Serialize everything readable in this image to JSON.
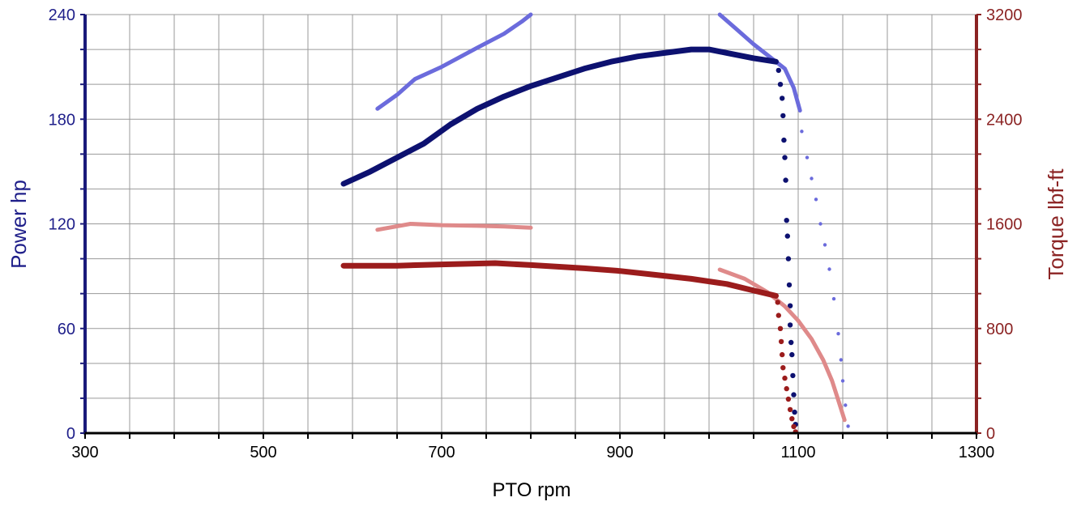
{
  "chart_data": {
    "type": "line",
    "title": "",
    "xlabel": "PTO rpm",
    "ylabel": "Power hp",
    "y2label": "Torque lbf-ft",
    "xlim": [
      300,
      1300
    ],
    "ylim": [
      0,
      240
    ],
    "y2lim": [
      0,
      3200
    ],
    "x_ticks": [
      300,
      500,
      700,
      900,
      1100,
      1300
    ],
    "y_ticks": [
      0,
      60,
      120,
      180,
      240
    ],
    "y2_ticks": [
      0,
      800,
      1600,
      2400,
      3200
    ],
    "grid": true,
    "legend": "none",
    "colors": {
      "left_axis": "#1a1a7a",
      "right_axis": "#8b2323",
      "power_dark": "#0d1170",
      "power_light": "#6b6bdc",
      "torque_dark": "#9b1c1c",
      "torque_light": "#df8a8a"
    },
    "series": [
      {
        "axis": "left",
        "color": "power_light",
        "style": "line",
        "points": [
          [
            628,
            186
          ],
          [
            650,
            194
          ],
          [
            670,
            203
          ],
          [
            700,
            210
          ],
          [
            740,
            221
          ],
          [
            770,
            229
          ],
          [
            790,
            236
          ],
          [
            800,
            240
          ]
        ]
      },
      {
        "axis": "left",
        "color": "power_light",
        "style": "line",
        "points": [
          [
            1012,
            240
          ],
          [
            1030,
            232
          ],
          [
            1050,
            223
          ],
          [
            1070,
            215
          ],
          [
            1085,
            209
          ],
          [
            1095,
            198
          ],
          [
            1102,
            185
          ]
        ]
      },
      {
        "axis": "left",
        "color": "power_light",
        "style": "dots",
        "points": [
          [
            1104,
            173
          ],
          [
            1110,
            158
          ],
          [
            1115,
            146
          ],
          [
            1120,
            134
          ],
          [
            1125,
            120
          ],
          [
            1130,
            108
          ],
          [
            1135,
            94
          ],
          [
            1140,
            77
          ],
          [
            1145,
            57
          ],
          [
            1148,
            42
          ],
          [
            1150,
            30
          ],
          [
            1153,
            16
          ],
          [
            1156,
            4
          ]
        ]
      },
      {
        "axis": "left",
        "color": "power_dark",
        "style": "line",
        "points": [
          [
            590,
            143
          ],
          [
            620,
            150
          ],
          [
            650,
            158
          ],
          [
            680,
            166
          ],
          [
            710,
            177
          ],
          [
            740,
            186
          ],
          [
            770,
            193
          ],
          [
            800,
            199
          ],
          [
            830,
            204
          ],
          [
            860,
            209
          ],
          [
            890,
            213
          ],
          [
            920,
            216
          ],
          [
            950,
            218
          ],
          [
            980,
            220
          ],
          [
            1000,
            220
          ],
          [
            1020,
            218
          ],
          [
            1050,
            215
          ],
          [
            1075,
            213
          ]
        ]
      },
      {
        "axis": "left",
        "color": "power_dark",
        "style": "dots",
        "points": [
          [
            1078,
            208
          ],
          [
            1080,
            200
          ],
          [
            1082,
            192
          ],
          [
            1083,
            182
          ],
          [
            1084,
            168
          ],
          [
            1085,
            158
          ],
          [
            1086,
            145
          ],
          [
            1087,
            122
          ],
          [
            1088,
            113
          ],
          [
            1089,
            100
          ],
          [
            1090,
            85
          ],
          [
            1091,
            73
          ],
          [
            1091,
            62
          ],
          [
            1092,
            52
          ],
          [
            1093,
            45
          ],
          [
            1094,
            33
          ],
          [
            1095,
            22
          ],
          [
            1096,
            12
          ],
          [
            1097,
            5
          ]
        ]
      },
      {
        "axis": "right",
        "color": "torque_light",
        "style": "line",
        "points": [
          [
            628,
            1555
          ],
          [
            665,
            1600
          ],
          [
            700,
            1590
          ],
          [
            740,
            1585
          ],
          [
            770,
            1580
          ],
          [
            800,
            1570
          ]
        ]
      },
      {
        "axis": "right",
        "color": "torque_light",
        "style": "line",
        "points": [
          [
            1012,
            1250
          ],
          [
            1040,
            1180
          ],
          [
            1065,
            1080
          ],
          [
            1085,
            970
          ],
          [
            1100,
            860
          ],
          [
            1115,
            720
          ],
          [
            1128,
            560
          ],
          [
            1138,
            400
          ],
          [
            1146,
            230
          ],
          [
            1152,
            100
          ]
        ]
      },
      {
        "axis": "right",
        "color": "torque_dark",
        "style": "line",
        "points": [
          [
            590,
            1280
          ],
          [
            650,
            1280
          ],
          [
            700,
            1290
          ],
          [
            760,
            1300
          ],
          [
            800,
            1285
          ],
          [
            860,
            1260
          ],
          [
            900,
            1240
          ],
          [
            940,
            1210
          ],
          [
            980,
            1180
          ],
          [
            1020,
            1140
          ],
          [
            1050,
            1090
          ],
          [
            1075,
            1050
          ]
        ]
      },
      {
        "axis": "right",
        "color": "torque_dark",
        "style": "dots",
        "points": [
          [
            1077,
            1000
          ],
          [
            1078,
            900
          ],
          [
            1080,
            800
          ],
          [
            1081,
            700
          ],
          [
            1082,
            600
          ],
          [
            1083,
            500
          ],
          [
            1085,
            420
          ],
          [
            1087,
            340
          ],
          [
            1089,
            260
          ],
          [
            1091,
            180
          ],
          [
            1093,
            110
          ],
          [
            1095,
            50
          ],
          [
            1097,
            10
          ]
        ]
      }
    ]
  }
}
